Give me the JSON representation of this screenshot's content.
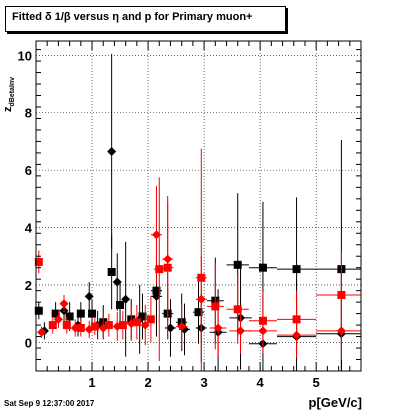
{
  "chart_data": {
    "type": "scatter",
    "title": "Fitted δ 1/β versus η and p for Primary muon+",
    "xlabel": "p[GeV/c]",
    "ylabel": "z",
    "ylabel_sub": "dBetaInv",
    "xlim": [
      0,
      5.8
    ],
    "ylim": [
      -1,
      10.5
    ],
    "x_ticks": [
      1,
      2,
      3,
      4,
      5
    ],
    "y_ticks": [
      0,
      2,
      4,
      6,
      8,
      10
    ],
    "grid": true,
    "legend": "none",
    "timestamp": "Sat Sep  9 12:37:00 2017",
    "series": [
      {
        "marker": "square",
        "color": "#000000",
        "points": [
          {
            "x": 0.05,
            "y": 1.1,
            "yerr": 0.3,
            "xerr": 0.05
          },
          {
            "x": 0.35,
            "y": 1.0,
            "yerr": 0.4,
            "xerr": 0.05
          },
          {
            "x": 0.6,
            "y": 0.9,
            "yerr": 0.5,
            "xerr": 0.05
          },
          {
            "x": 0.8,
            "y": 1.0,
            "yerr": 0.4,
            "xerr": 0.05
          },
          {
            "x": 1.0,
            "y": 1.0,
            "yerr": 0.5,
            "xerr": 0.05
          },
          {
            "x": 1.2,
            "y": 0.7,
            "yerr": 0.6,
            "xerr": 0.05
          },
          {
            "x": 1.35,
            "y": 2.45,
            "yerr": 1.3,
            "xerr": 0.05
          },
          {
            "x": 1.5,
            "y": 1.3,
            "yerr": 0.8,
            "xerr": 0.05
          },
          {
            "x": 1.7,
            "y": 0.8,
            "yerr": 0.7,
            "xerr": 0.05
          },
          {
            "x": 1.9,
            "y": 0.9,
            "yerr": 0.8,
            "xerr": 0.05
          },
          {
            "x": 2.15,
            "y": 1.8,
            "yerr": 1.6,
            "xerr": 0.1
          },
          {
            "x": 2.35,
            "y": 1.0,
            "yerr": 0.9,
            "xerr": 0.1
          },
          {
            "x": 2.6,
            "y": 0.7,
            "yerr": 1.0,
            "xerr": 0.1
          },
          {
            "x": 2.9,
            "y": 1.05,
            "yerr": 1.1,
            "xerr": 0.1
          },
          {
            "x": 3.2,
            "y": 1.45,
            "yerr": 1.5,
            "xerr": 0.15
          },
          {
            "x": 3.6,
            "y": 2.7,
            "yerr": 2.5,
            "xerr": 0.2
          },
          {
            "x": 4.05,
            "y": 2.6,
            "yerr": 2.3,
            "xerr": 0.25
          },
          {
            "x": 4.65,
            "y": 2.55,
            "yerr": 2.5,
            "xerr": 0.35
          },
          {
            "x": 5.45,
            "y": 2.55,
            "yerr": 4.5,
            "xerr": 0.45
          }
        ]
      },
      {
        "marker": "diamond",
        "color": "#000000",
        "points": [
          {
            "x": 0.15,
            "y": 0.4,
            "yerr": 0.3,
            "xerr": 0.05
          },
          {
            "x": 0.5,
            "y": 1.1,
            "yerr": 0.4,
            "xerr": 0.05
          },
          {
            "x": 0.75,
            "y": 0.6,
            "yerr": 0.4,
            "xerr": 0.05
          },
          {
            "x": 0.95,
            "y": 1.6,
            "yerr": 0.5,
            "xerr": 0.05
          },
          {
            "x": 1.1,
            "y": 0.6,
            "yerr": 0.5,
            "xerr": 0.05
          },
          {
            "x": 1.35,
            "y": 6.65,
            "yerr": 3.4,
            "xerr": 0.05
          },
          {
            "x": 1.45,
            "y": 2.1,
            "yerr": 1.0,
            "xerr": 0.05
          },
          {
            "x": 1.6,
            "y": 1.5,
            "yerr": 2.0,
            "xerr": 0.05
          },
          {
            "x": 1.85,
            "y": 0.8,
            "yerr": 1.2,
            "xerr": 0.05
          },
          {
            "x": 2.15,
            "y": 1.6,
            "yerr": 1.4,
            "xerr": 0.1
          },
          {
            "x": 2.4,
            "y": 0.5,
            "yerr": 1.0,
            "xerr": 0.1
          },
          {
            "x": 2.65,
            "y": 0.45,
            "yerr": 0.9,
            "xerr": 0.1
          },
          {
            "x": 2.95,
            "y": 0.5,
            "yerr": 1.2,
            "xerr": 0.1
          },
          {
            "x": 3.25,
            "y": 0.35,
            "yerr": 1.5,
            "xerr": 0.15
          },
          {
            "x": 3.65,
            "y": 0.85,
            "yerr": 1.8,
            "xerr": 0.2
          },
          {
            "x": 4.05,
            "y": -0.05,
            "yerr": 1.7,
            "xerr": 0.25
          },
          {
            "x": 4.65,
            "y": 0.2,
            "yerr": 2.0,
            "xerr": 0.35
          },
          {
            "x": 5.45,
            "y": 0.3,
            "yerr": 2.3,
            "xerr": 0.45
          }
        ]
      },
      {
        "marker": "square",
        "color": "#ff0000",
        "points": [
          {
            "x": 0.05,
            "y": 2.8,
            "yerr": 0.4,
            "xerr": 0.05
          },
          {
            "x": 0.3,
            "y": 0.6,
            "yerr": 0.3,
            "xerr": 0.05
          },
          {
            "x": 0.55,
            "y": 0.6,
            "yerr": 0.3,
            "xerr": 0.05
          },
          {
            "x": 0.8,
            "y": 0.5,
            "yerr": 0.3,
            "xerr": 0.05
          },
          {
            "x": 1.05,
            "y": 0.55,
            "yerr": 0.3,
            "xerr": 0.05
          },
          {
            "x": 1.3,
            "y": 0.6,
            "yerr": 0.4,
            "xerr": 0.05
          },
          {
            "x": 1.55,
            "y": 0.6,
            "yerr": 0.5,
            "xerr": 0.05
          },
          {
            "x": 1.8,
            "y": 0.7,
            "yerr": 0.6,
            "xerr": 0.05
          },
          {
            "x": 2.05,
            "y": 0.8,
            "yerr": 0.8,
            "xerr": 0.05
          },
          {
            "x": 2.2,
            "y": 2.55,
            "yerr": 3.2,
            "xerr": 0.1
          },
          {
            "x": 2.35,
            "y": 2.6,
            "yerr": 2.5,
            "xerr": 0.1
          },
          {
            "x": 2.95,
            "y": 2.25,
            "yerr": 4.5,
            "xerr": 0.1
          },
          {
            "x": 3.2,
            "y": 1.25,
            "yerr": 1.5,
            "xerr": 0.15
          },
          {
            "x": 3.6,
            "y": 1.15,
            "yerr": 1.2,
            "xerr": 0.2
          },
          {
            "x": 4.05,
            "y": 0.75,
            "yerr": 1.0,
            "xerr": 0.25
          },
          {
            "x": 4.65,
            "y": 0.8,
            "yerr": 1.0,
            "xerr": 0.35
          },
          {
            "x": 5.45,
            "y": 1.65,
            "yerr": 1.5,
            "xerr": 0.45
          }
        ]
      },
      {
        "marker": "diamond",
        "color": "#ff0000",
        "points": [
          {
            "x": 0.1,
            "y": 0.35,
            "yerr": 0.2,
            "xerr": 0.05
          },
          {
            "x": 0.4,
            "y": 0.8,
            "yerr": 0.3,
            "xerr": 0.05
          },
          {
            "x": 0.5,
            "y": 1.35,
            "yerr": 0.3,
            "xerr": 0.05
          },
          {
            "x": 0.7,
            "y": 0.5,
            "yerr": 0.3,
            "xerr": 0.05
          },
          {
            "x": 0.95,
            "y": 0.45,
            "yerr": 0.3,
            "xerr": 0.05
          },
          {
            "x": 1.2,
            "y": 0.5,
            "yerr": 0.4,
            "xerr": 0.05
          },
          {
            "x": 1.45,
            "y": 0.55,
            "yerr": 0.5,
            "xerr": 0.05
          },
          {
            "x": 1.7,
            "y": 0.65,
            "yerr": 0.6,
            "xerr": 0.05
          },
          {
            "x": 1.95,
            "y": 0.6,
            "yerr": 0.7,
            "xerr": 0.05
          },
          {
            "x": 2.15,
            "y": 3.75,
            "yerr": 1.7,
            "xerr": 0.1
          },
          {
            "x": 2.35,
            "y": 2.9,
            "yerr": 2.0,
            "xerr": 0.1
          },
          {
            "x": 2.6,
            "y": 0.55,
            "yerr": 0.8,
            "xerr": 0.1
          },
          {
            "x": 2.95,
            "y": 1.5,
            "yerr": 1.5,
            "xerr": 0.1
          },
          {
            "x": 3.25,
            "y": 0.5,
            "yerr": 1.0,
            "xerr": 0.15
          },
          {
            "x": 3.65,
            "y": 0.4,
            "yerr": 0.8,
            "xerr": 0.2
          },
          {
            "x": 4.05,
            "y": 0.4,
            "yerr": 0.8,
            "xerr": 0.25
          },
          {
            "x": 4.65,
            "y": 0.25,
            "yerr": 0.8,
            "xerr": 0.35
          },
          {
            "x": 5.45,
            "y": 0.4,
            "yerr": 1.0,
            "xerr": 0.45
          }
        ]
      }
    ]
  }
}
